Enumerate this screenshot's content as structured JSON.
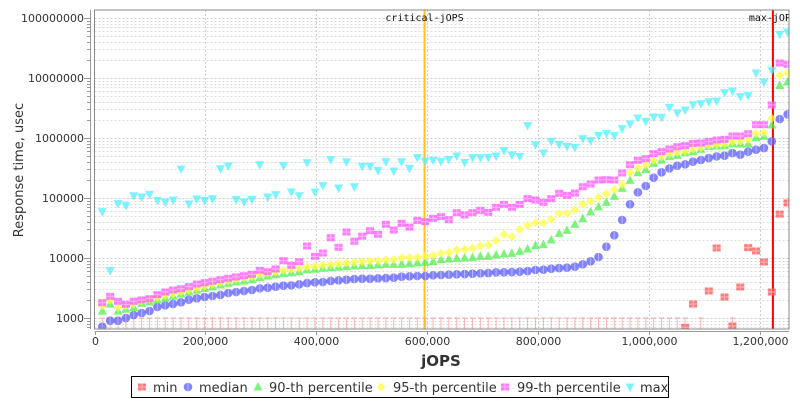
{
  "chart_data": {
    "type": "scatter",
    "xlabel": "jOPS",
    "ylabel": "Response time, usec",
    "xlim": [
      0,
      1252000
    ],
    "ylim": [
      656,
      136000000
    ],
    "y_scale": "log",
    "grid": true,
    "legend_placement": "bottom",
    "x_tick_values": [
      0,
      200000,
      400000,
      600000,
      800000,
      1000000,
      1200000
    ],
    "x_ticks": [
      "0",
      "200,000",
      "400,000",
      "600,000",
      "800,000",
      "1,000,000",
      "1,200,000"
    ],
    "y_tick_values": [
      1000,
      10000,
      100000,
      1000000,
      10000000,
      100000000
    ],
    "y_ticks": [
      "1000",
      "10000",
      "100000",
      "1000000",
      "10000000",
      "100000000"
    ],
    "annotations": [
      {
        "label": "critical-jOPS",
        "x": 595000,
        "color": "#ffc020"
      },
      {
        "label": "max-jOPS",
        "x": 1223000,
        "color": "#ff0000"
      }
    ],
    "x": [
      14000,
      28200,
      42400,
      56600,
      70800,
      85000,
      99200,
      113400,
      127600,
      141800,
      156000,
      170200,
      184400,
      198600,
      212800,
      227000,
      241200,
      255400,
      269600,
      283800,
      298000,
      312200,
      326400,
      340600,
      354800,
      369000,
      383200,
      397400,
      411600,
      425800,
      440000,
      454200,
      468400,
      482600,
      496800,
      511000,
      525200,
      539400,
      553600,
      567800,
      582000,
      596200,
      610400,
      624600,
      638800,
      653000,
      667200,
      681400,
      695600,
      709800,
      724000,
      738200,
      752400,
      766600,
      780800,
      795000,
      809200,
      823400,
      837600,
      851800,
      866000,
      880200,
      894400,
      908600,
      922800,
      937000,
      951200,
      965400,
      979600,
      993800,
      1008000,
      1022200,
      1036400,
      1050600,
      1064800,
      1079000,
      1093200,
      1107400,
      1121600,
      1135800,
      1150000,
      1164200,
      1178400,
      1192600,
      1206800,
      1221000,
      1235200,
      1249400
    ],
    "series": [
      {
        "name": "min",
        "color": "#ff5050",
        "marker": "square",
        "values": [
          null,
          null,
          null,
          null,
          null,
          null,
          null,
          null,
          null,
          null,
          null,
          null,
          null,
          null,
          null,
          null,
          null,
          null,
          null,
          null,
          null,
          null,
          null,
          null,
          null,
          null,
          null,
          null,
          null,
          null,
          null,
          null,
          null,
          null,
          null,
          null,
          null,
          null,
          null,
          null,
          null,
          null,
          null,
          null,
          null,
          null,
          null,
          null,
          null,
          null,
          null,
          null,
          null,
          null,
          null,
          null,
          null,
          null,
          null,
          null,
          null,
          null,
          null,
          null,
          null,
          null,
          null,
          null,
          null,
          null,
          null,
          null,
          null,
          null,
          700,
          1710,
          null,
          2820,
          14700,
          2240,
          735,
          3290,
          14900,
          13100,
          8580,
          2710,
          54000,
          83000
        ]
      },
      {
        "name": "median",
        "color": "#5a5aff",
        "marker": "circle",
        "values": [
          718,
          903,
          903,
          1000,
          1122,
          1212,
          1308,
          1525,
          1626,
          1712,
          1824,
          2020,
          2127,
          2240,
          2328,
          2420,
          2610,
          2712,
          2818,
          2929,
          3120,
          3200,
          3330,
          3460,
          3500,
          3640,
          3830,
          3930,
          3980,
          4140,
          4240,
          4350,
          4470,
          4520,
          4520,
          4580,
          4640,
          4700,
          4886,
          4946,
          5012,
          5012,
          5140,
          5210,
          5275,
          5345,
          5410,
          5480,
          5550,
          5620,
          5770,
          5770,
          5840,
          5915,
          6070,
          6310,
          6390,
          6640,
          6810,
          6900,
          7170,
          7840,
          8800,
          10400,
          15450,
          23870,
          43000,
          78400,
          124300,
          158500,
          218000,
          268000,
          312000,
          346000,
          364000,
          403000,
          430000,
          464000,
          494000,
          508000,
          562000,
          527000,
          592000,
          639000,
          681000,
          880000,
          2075000,
          2480000
        ]
      },
      {
        "name": "90-th percentile",
        "color": "#50f050",
        "marker": "triangle-up",
        "values": [
          1300,
          1700,
          1300,
          1400,
          1500,
          1750,
          1850,
          2000,
          2150,
          2300,
          2500,
          2700,
          2900,
          3100,
          3300,
          3550,
          3800,
          4000,
          4140,
          4350,
          4700,
          5010,
          5270,
          5550,
          5700,
          5910,
          6380,
          6490,
          6740,
          6900,
          7000,
          7170,
          7360,
          7450,
          7450,
          7640,
          7850,
          7850,
          7840,
          8050,
          8260,
          8470,
          8690,
          9380,
          9620,
          9870,
          10000,
          10130,
          10660,
          10660,
          11220,
          11660,
          11960,
          12910,
          14130,
          16070,
          16680,
          19950,
          25770,
          28910,
          36400,
          45270,
          58400,
          70800,
          84700,
          106600,
          145000,
          197000,
          264000,
          297000,
          378000,
          425000,
          489000,
          514000,
          570000,
          592000,
          647000,
          717000,
          736000,
          745000,
          805000,
          794000,
          794000,
          1013000,
          1066000,
          1648000,
          7450000,
          8570000
        ]
      },
      {
        "name": "95-th percentile",
        "color": "#ffff40",
        "marker": "diamond",
        "values": [
          1600,
          2000,
          1500,
          1600,
          1700,
          1900,
          2050,
          2200,
          2400,
          2550,
          2750,
          2950,
          3150,
          3400,
          3650,
          3900,
          4150,
          4450,
          4700,
          4950,
          5300,
          5600,
          5900,
          6200,
          6500,
          6800,
          7100,
          7300,
          7600,
          7800,
          8000,
          8300,
          8500,
          8700,
          8900,
          9000,
          9300,
          9400,
          10130,
          10130,
          10260,
          10800,
          11070,
          11960,
          12270,
          13590,
          13940,
          14490,
          15850,
          16480,
          19450,
          24780,
          22690,
          30050,
          35000,
          38800,
          38300,
          44060,
          54800,
          55500,
          63100,
          79400,
          88000,
          102600,
          118000,
          137700,
          169000,
          264000,
          316000,
          355000,
          425000,
          489000,
          541000,
          577000,
          600000,
          656000,
          698000,
          745000,
          784000,
          794000,
          869000,
          891000,
          950000,
          1196000,
          1228000,
          2127000,
          11070000,
          12100000
        ]
      },
      {
        "name": "99-th percentile",
        "color": "#ff50ff",
        "marker": "square",
        "values": [
          1800,
          2300,
          1900,
          1690,
          1900,
          2000,
          2100,
          2450,
          2710,
          2930,
          3080,
          3330,
          3690,
          3880,
          4100,
          4350,
          4600,
          4850,
          5070,
          5350,
          6240,
          5910,
          6560,
          9020,
          7560,
          8680,
          15850,
          10670,
          12100,
          21800,
          15100,
          27100,
          19000,
          23100,
          28500,
          24800,
          36400,
          29300,
          37800,
          32800,
          42400,
          40300,
          45800,
          48900,
          43500,
          57000,
          52100,
          57000,
          62300,
          57700,
          69900,
          78400,
          69900,
          78400,
          97500,
          92600,
          84700,
          97500,
          119700,
          110800,
          121100,
          154500,
          171000,
          199500,
          202000,
          199500,
          261000,
          359000,
          425000,
          453000,
          548000,
          592000,
          656000,
          717000,
          745000,
          815000,
          826000,
          880000,
          926000,
          950000,
          1080000,
          1080000,
          1180000,
          1667000,
          1667000,
          3550000,
          17800000,
          16900000
        ]
      },
      {
        "name": "max",
        "color": "#50f0ff",
        "marker": "triangle-down",
        "values": [
          59200,
          6150,
          80500,
          74800,
          109000,
          104000,
          115000,
          91000,
          84800,
          92800,
          304000,
          79500,
          96200,
          91000,
          97400,
          308000,
          342000,
          94000,
          85800,
          95000,
          359000,
          104000,
          114000,
          346000,
          126000,
          109000,
          389000,
          126000,
          161000,
          437000,
          147000,
          400000,
          154000,
          337000,
          337000,
          288000,
          405000,
          282000,
          403000,
          312000,
          470000,
          414000,
          425000,
          408000,
          441000,
          501000,
          393000,
          470000,
          470000,
          476000,
          501000,
          615000,
          521000,
          494000,
          1606000,
          774000,
          562000,
          880000,
          784000,
          726000,
          698000,
          975000,
          903000,
          1107000,
          1196000,
          1094000,
          1432000,
          1711000,
          2154000,
          1896000,
          2239000,
          2210000,
          3245000,
          2610000,
          2930000,
          3590000,
          3730000,
          4030000,
          4140000,
          5700000,
          6070000,
          4890000,
          5080000,
          12100000,
          8570000,
          13400000,
          53400000,
          58400000
        ]
      }
    ]
  }
}
